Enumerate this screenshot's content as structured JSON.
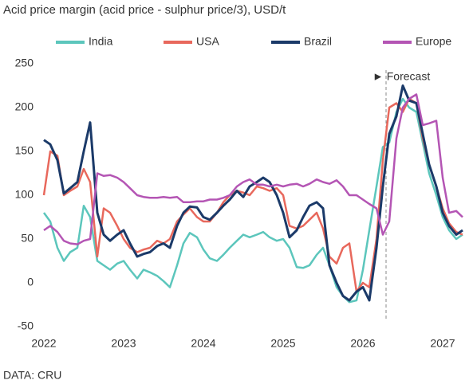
{
  "chart_data": {
    "type": "line",
    "title": "Acid price margin (acid price - sulphur price/3), USD/t",
    "source": "DATA: CRU",
    "x": [
      2022,
      2022.08,
      2022.17,
      2022.25,
      2022.33,
      2022.42,
      2022.5,
      2022.58,
      2022.67,
      2022.75,
      2022.83,
      2022.92,
      2023,
      2023.08,
      2023.17,
      2023.25,
      2023.33,
      2023.42,
      2023.5,
      2023.58,
      2023.67,
      2023.75,
      2023.83,
      2023.92,
      2024,
      2024.08,
      2024.17,
      2024.25,
      2024.33,
      2024.42,
      2024.5,
      2024.58,
      2024.67,
      2024.75,
      2024.83,
      2024.92,
      2025,
      2025.08,
      2025.17,
      2025.25,
      2025.33,
      2025.42,
      2025.5,
      2025.58,
      2025.67,
      2025.75,
      2025.83,
      2025.92,
      2026,
      2026.08,
      2026.17,
      2026.25,
      2026.33,
      2026.42,
      2026.5,
      2026.58,
      2026.67,
      2026.75,
      2026.83,
      2026.92,
      2027,
      2027.08,
      2027.17,
      2027.25
    ],
    "series": [
      {
        "name": "India",
        "color": "#5cc6bc",
        "values": [
          80,
          70,
          40,
          25,
          35,
          40,
          88,
          75,
          25,
          20,
          15,
          22,
          25,
          15,
          5,
          15,
          12,
          8,
          2,
          -5,
          20,
          45,
          57,
          52,
          38,
          28,
          25,
          32,
          40,
          48,
          55,
          52,
          55,
          58,
          52,
          48,
          50,
          40,
          18,
          17,
          20,
          32,
          40,
          20,
          -5,
          -15,
          -22,
          -20,
          15,
          60,
          110,
          155,
          160,
          195,
          210,
          200,
          195,
          160,
          125,
          100,
          75,
          60,
          50,
          55
        ]
      },
      {
        "name": "USA",
        "color": "#e8685c",
        "values": [
          100,
          150,
          145,
          100,
          105,
          110,
          130,
          115,
          30,
          85,
          80,
          65,
          50,
          40,
          35,
          38,
          40,
          48,
          45,
          50,
          70,
          78,
          85,
          75,
          70,
          70,
          80,
          92,
          100,
          105,
          103,
          100,
          110,
          108,
          105,
          108,
          100,
          65,
          62,
          65,
          72,
          80,
          62,
          30,
          22,
          40,
          45,
          -10,
          0,
          -5,
          50,
          140,
          200,
          205,
          195,
          210,
          205,
          165,
          135,
          110,
          85,
          68,
          58,
          55
        ]
      },
      {
        "name": "Brazil",
        "color": "#1b3a69",
        "values": [
          163,
          158,
          140,
          102,
          108,
          115,
          150,
          183,
          80,
          55,
          48,
          55,
          60,
          45,
          30,
          33,
          35,
          42,
          45,
          40,
          65,
          80,
          87,
          86,
          75,
          72,
          80,
          88,
          95,
          105,
          98,
          110,
          115,
          120,
          115,
          100,
          80,
          52,
          60,
          75,
          88,
          92,
          85,
          20,
          0,
          -15,
          -20,
          -10,
          -5,
          -20,
          40,
          110,
          170,
          190,
          225,
          208,
          205,
          170,
          135,
          110,
          80,
          65,
          55,
          60
        ]
      },
      {
        "name": "Europe",
        "color": "#b455b4",
        "values": [
          60,
          65,
          58,
          48,
          45,
          44,
          48,
          50,
          125,
          122,
          123,
          120,
          115,
          108,
          100,
          98,
          97,
          97,
          98,
          97,
          98,
          92,
          92,
          93,
          93,
          95,
          95,
          97,
          100,
          110,
          115,
          118,
          112,
          112,
          110,
          112,
          110,
          112,
          113,
          110,
          113,
          118,
          115,
          113,
          117,
          110,
          100,
          100,
          95,
          90,
          85,
          55,
          70,
          165,
          200,
          210,
          215,
          180,
          182,
          185,
          120,
          80,
          82,
          75
        ]
      }
    ],
    "xlim": [
      2022,
      2027.28
    ],
    "xticks": [
      2022,
      2023,
      2024,
      2025,
      2026,
      2027
    ],
    "ylim": [
      -50,
      250
    ],
    "yticks": [
      -50,
      0,
      50,
      100,
      150,
      200,
      250
    ],
    "grid": false,
    "vline": {
      "x": 2026.29,
      "label": "► Forecast"
    }
  }
}
